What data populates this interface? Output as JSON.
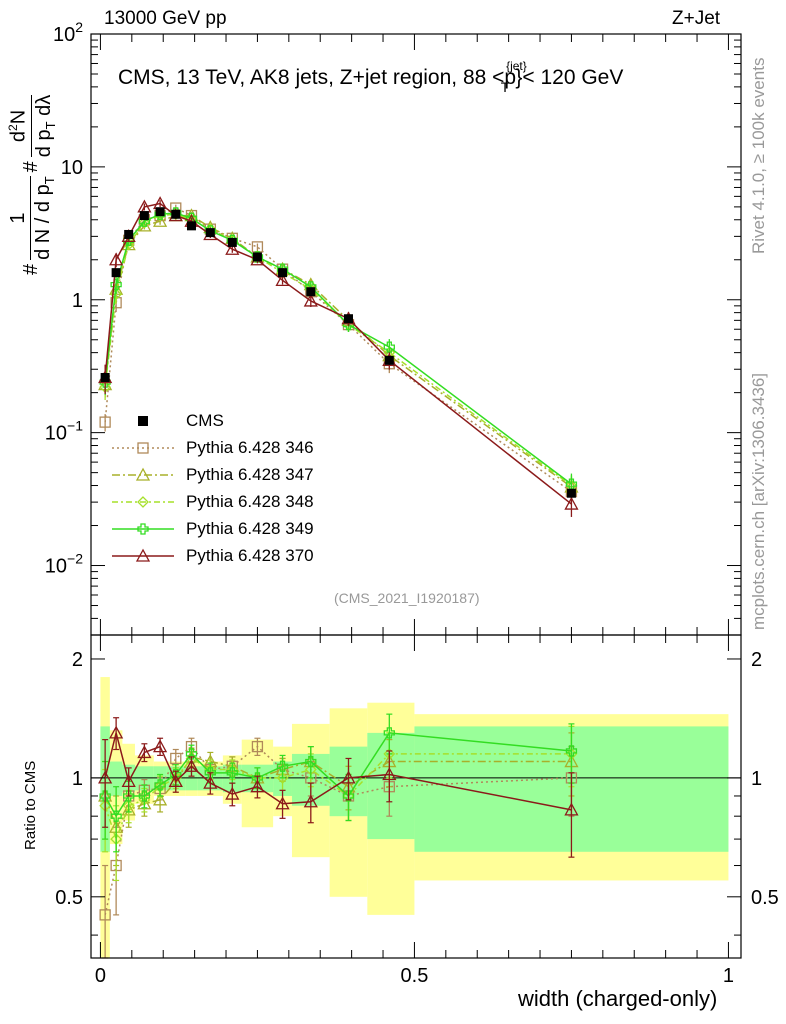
{
  "header": {
    "left": "13000 GeV pp",
    "right": "Z+Jet",
    "plot_title": "CMS, 13 TeV, AK8 jets, Z+jet region, 88 <p",
    "plot_title_super": "{jet}",
    "plot_title_sub": "T",
    "plot_title_tail": "}< 120 GeV",
    "analysis_tag": "(CMS_2021_I1920187)"
  },
  "side_text": {
    "rivet": "Rivet 4.1.0, ≥ 100k events",
    "mcplots": "mcplots.cern.ch [arXiv:1306.3436]"
  },
  "axes": {
    "xlabel": "width (charged-only)",
    "ylabel": "#   1/dN/dp_T #   d²N/dp_T dλ",
    "ylabel_ratio": "Ratio to CMS",
    "x_ticks": [
      "0",
      "0.5",
      "1"
    ],
    "y_ticks_main": [
      "10^-2",
      "10^-1",
      "1",
      "10",
      "10^2"
    ],
    "y_ticks_ratio": [
      "0.5",
      "1",
      "2"
    ]
  },
  "chart_data": {
    "type": "line",
    "title": "CMS, 13 TeV, AK8 jets, Z+jet region, 88 < pT(jet) < 120 GeV",
    "xlabel": "width (charged-only)",
    "ylabel": "1/dN/dpT d2N/dpT dlambda",
    "xlim": [
      -0.015,
      1.02
    ],
    "ylim": [
      0.003,
      100
    ],
    "yscale": "log",
    "ratio_ylim": [
      0.35,
      2.3
    ],
    "x": [
      0.0075,
      0.025,
      0.045,
      0.07,
      0.095,
      0.12,
      0.145,
      0.175,
      0.21,
      0.25,
      0.29,
      0.335,
      0.395,
      0.46,
      0.75
    ],
    "bin_edges": [
      0.0,
      0.015,
      0.035,
      0.055,
      0.085,
      0.105,
      0.135,
      0.155,
      0.195,
      0.225,
      0.275,
      0.305,
      0.365,
      0.425,
      0.5,
      1.0
    ],
    "data": {
      "name": "CMS",
      "values": [
        0.26,
        1.6,
        3.1,
        4.3,
        4.6,
        4.4,
        3.6,
        3.2,
        2.7,
        2.1,
        1.6,
        1.15,
        0.72,
        0.35,
        0.035
      ],
      "stat_err": [
        0.35,
        0.1,
        0.08,
        0.07,
        0.07,
        0.07,
        0.07,
        0.07,
        0.08,
        0.08,
        0.1,
        0.15,
        0.2,
        0.3,
        0.35
      ],
      "tot_err": [
        0.8,
        0.32,
        0.22,
        0.14,
        0.1,
        0.1,
        0.1,
        0.1,
        0.14,
        0.25,
        0.2,
        0.37,
        0.5,
        0.55,
        0.45
      ]
    },
    "series": [
      {
        "name": "Pythia 6.428 346",
        "color": "#b08a5a",
        "dash": "2,3",
        "marker": "square",
        "values": [
          0.12,
          0.95,
          2.8,
          4.0,
          4.3,
          4.9,
          4.3,
          3.4,
          2.9,
          2.5,
          1.7,
          1.15,
          0.65,
          0.33,
          0.036
        ],
        "ratio": [
          0.45,
          0.6,
          0.9,
          0.93,
          0.94,
          1.12,
          1.2,
          1.05,
          1.07,
          1.2,
          1.05,
          1.0,
          0.9,
          0.95,
          1.0
        ],
        "ratio_err": [
          0.15,
          0.15,
          0.08,
          0.06,
          0.06,
          0.06,
          0.06,
          0.06,
          0.06,
          0.06,
          0.07,
          0.1,
          0.12,
          0.15,
          0.2
        ]
      },
      {
        "name": "Pythia 6.428 347",
        "color": "#a8b02a",
        "dash": "8,3,2,3",
        "marker": "triangle",
        "values": [
          0.23,
          1.2,
          2.6,
          3.6,
          3.9,
          4.3,
          4.3,
          3.5,
          2.9,
          2.1,
          1.7,
          1.3,
          0.7,
          0.38,
          0.039
        ],
        "ratio": [
          0.9,
          0.75,
          0.83,
          0.86,
          0.88,
          0.98,
          1.13,
          1.1,
          1.07,
          1.0,
          1.05,
          1.1,
          0.95,
          1.1,
          1.1
        ],
        "ratio_err": [
          0.2,
          0.15,
          0.08,
          0.06,
          0.06,
          0.06,
          0.06,
          0.06,
          0.06,
          0.06,
          0.07,
          0.1,
          0.12,
          0.15,
          0.2
        ]
      },
      {
        "name": "Pythia 6.428 348",
        "color": "#a6e02a",
        "dash": "6,3,2,3",
        "marker": "diamond",
        "values": [
          0.22,
          1.1,
          2.6,
          3.8,
          4.3,
          4.4,
          4.0,
          3.4,
          2.8,
          2.1,
          1.6,
          1.2,
          0.65,
          0.4,
          0.04
        ],
        "ratio": [
          0.85,
          0.7,
          0.85,
          0.88,
          0.95,
          1.0,
          1.12,
          1.05,
          1.05,
          1.0,
          1.0,
          1.05,
          0.9,
          1.15,
          1.15
        ],
        "ratio_err": [
          0.2,
          0.15,
          0.08,
          0.06,
          0.06,
          0.06,
          0.06,
          0.06,
          0.06,
          0.06,
          0.07,
          0.1,
          0.12,
          0.15,
          0.2
        ]
      },
      {
        "name": "Pythia 6.428 349",
        "color": "#33dd22",
        "dash": "",
        "marker": "cross",
        "values": [
          0.24,
          1.3,
          2.8,
          3.9,
          4.4,
          4.5,
          4.1,
          3.3,
          2.8,
          2.1,
          1.7,
          1.25,
          0.65,
          0.44,
          0.041
        ],
        "ratio": [
          0.9,
          0.8,
          0.9,
          0.9,
          0.96,
          1.02,
          1.15,
          1.03,
          1.03,
          1.0,
          1.07,
          1.1,
          0.9,
          1.3,
          1.17
        ],
        "ratio_err": [
          0.2,
          0.15,
          0.08,
          0.06,
          0.06,
          0.06,
          0.06,
          0.06,
          0.06,
          0.06,
          0.07,
          0.1,
          0.12,
          0.15,
          0.2
        ]
      },
      {
        "name": "Pythia 6.428 370",
        "color": "#8b1a1a",
        "dash": "",
        "marker": "triangle",
        "values": [
          0.26,
          2.0,
          3.0,
          5.0,
          5.3,
          4.3,
          3.9,
          3.1,
          2.4,
          2.0,
          1.4,
          0.98,
          0.72,
          0.35,
          0.029
        ],
        "ratio": [
          1.0,
          1.3,
          0.98,
          1.16,
          1.2,
          0.98,
          1.07,
          0.97,
          0.91,
          0.95,
          0.86,
          0.87,
          1.0,
          1.02,
          0.83
        ],
        "ratio_err": [
          0.25,
          0.12,
          0.08,
          0.06,
          0.06,
          0.06,
          0.06,
          0.06,
          0.06,
          0.06,
          0.07,
          0.1,
          0.12,
          0.15,
          0.2
        ]
      }
    ]
  }
}
